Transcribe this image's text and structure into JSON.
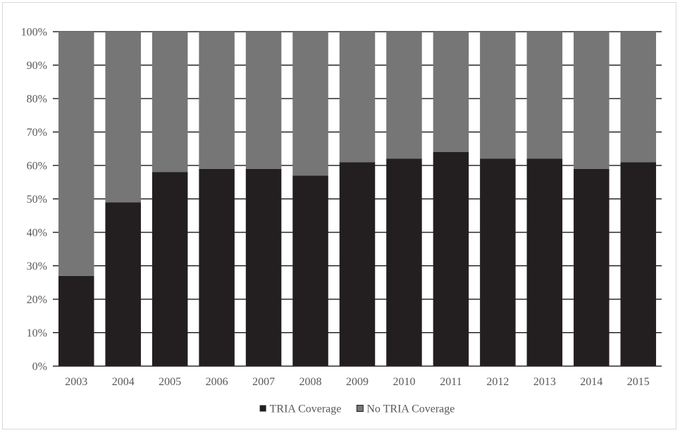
{
  "chart_data": {
    "type": "bar",
    "stacked": true,
    "percent_stacked": true,
    "categories": [
      "2003",
      "2004",
      "2005",
      "2006",
      "2007",
      "2008",
      "2009",
      "2010",
      "2011",
      "2012",
      "2013",
      "2014",
      "2015"
    ],
    "series": [
      {
        "name": "TRIA Coverage",
        "color": "#231f20",
        "values": [
          27,
          49,
          58,
          59,
          59,
          57,
          61,
          62,
          64,
          62,
          62,
          59,
          61
        ]
      },
      {
        "name": "No TRIA Coverage",
        "color": "#767676",
        "values": [
          73,
          51,
          42,
          41,
          41,
          43,
          39,
          38,
          36,
          38,
          38,
          41,
          39
        ]
      }
    ],
    "yticks": [
      "0%",
      "10%",
      "20%",
      "30%",
      "40%",
      "50%",
      "60%",
      "70%",
      "80%",
      "90%",
      "100%"
    ],
    "ylim": [
      0,
      100
    ],
    "grid": true,
    "gridline_color": "#000000",
    "legend_position": "bottom",
    "title": "",
    "xlabel": "",
    "ylabel": ""
  }
}
